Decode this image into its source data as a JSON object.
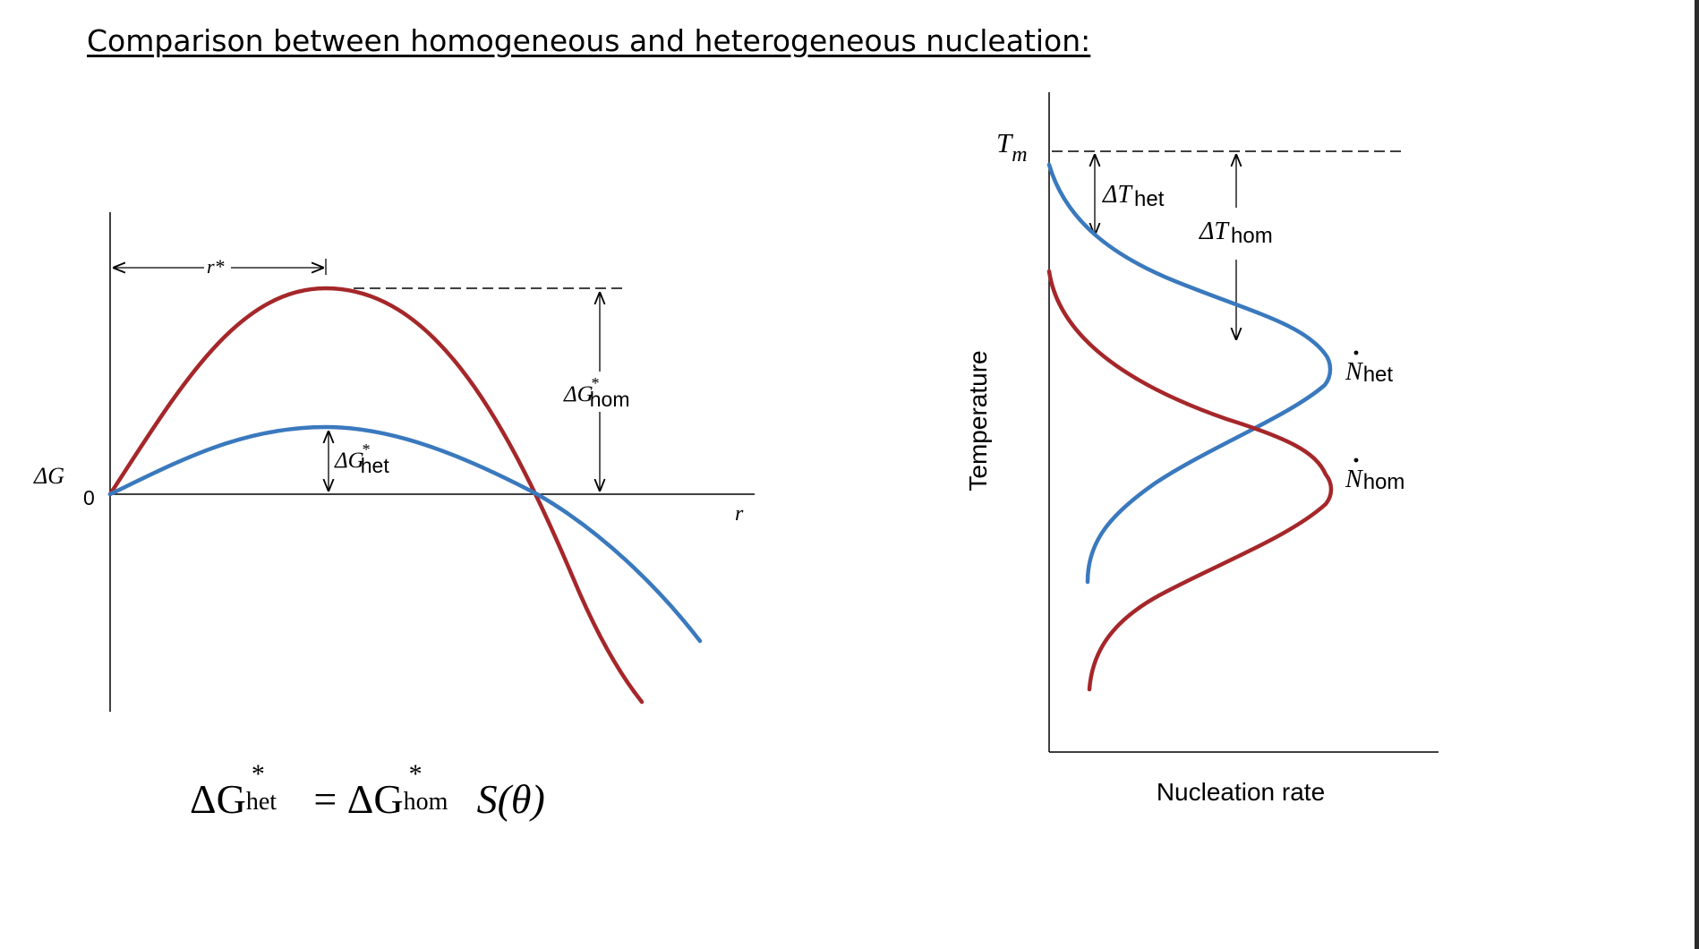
{
  "title": "Comparison between homogeneous and heterogeneous nucleation:",
  "colors": {
    "red_curve": "#a5272a",
    "blue_curve": "#3a79bd",
    "axis": "#000000"
  },
  "left_diagram": {
    "y_axis_label": "ΔG",
    "origin_label": "0",
    "x_axis_label": "r",
    "r_star_label": "r*",
    "dg_hom_label": {
      "base": "ΔG",
      "sup": "*",
      "sub": "hom"
    },
    "dg_het_label": {
      "base": "ΔG",
      "sup": "*",
      "sub": "het"
    }
  },
  "equation": {
    "lhs": "ΔG",
    "lhs_sup": "*",
    "lhs_sub": "het",
    "eq": "=",
    "rhs": "ΔG",
    "rhs_sup": "*",
    "rhs_sub": "hom",
    "factor": "S(θ)"
  },
  "right_diagram": {
    "tm_label": {
      "base": "T",
      "sub": "m"
    },
    "dt_het_label": {
      "base": "ΔT",
      "sub": "het"
    },
    "dt_hom_label": {
      "base": "ΔT",
      "sub": "hom"
    },
    "n_het_label": {
      "base": "N",
      "sub": "het"
    },
    "n_hom_label": {
      "base": "N",
      "sub": "hom"
    },
    "y_axis_label": "Temperature",
    "x_axis_label": "Nucleation rate"
  }
}
